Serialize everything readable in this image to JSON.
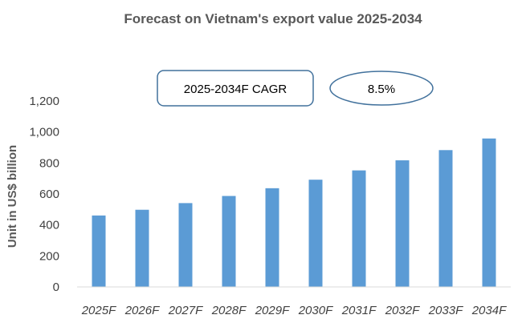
{
  "chart_data": {
    "type": "bar",
    "title": "Forecast on Vietnam's export value 2025-2034",
    "xlabel": "",
    "ylabel": "Unit in US$ billion",
    "categories": [
      "2025F",
      "2026F",
      "2027F",
      "2028F",
      "2029F",
      "2030F",
      "2031F",
      "2032F",
      "2033F",
      "2034F"
    ],
    "values": [
      461,
      498,
      541,
      587,
      637,
      692,
      752,
      817,
      883,
      958
    ],
    "ylim": [
      0,
      1200
    ],
    "yticks": [
      0,
      200,
      400,
      600,
      800,
      1000,
      1200
    ],
    "ytick_labels": [
      "0",
      "200",
      "400",
      "600",
      "800",
      "1,000",
      "1,200"
    ],
    "grid": false,
    "bar_color": "#5b9bd5",
    "annotations": {
      "cagr_label": "2025-2034F CAGR",
      "cagr_value": "8.5%",
      "box_color": "#41719c"
    }
  }
}
